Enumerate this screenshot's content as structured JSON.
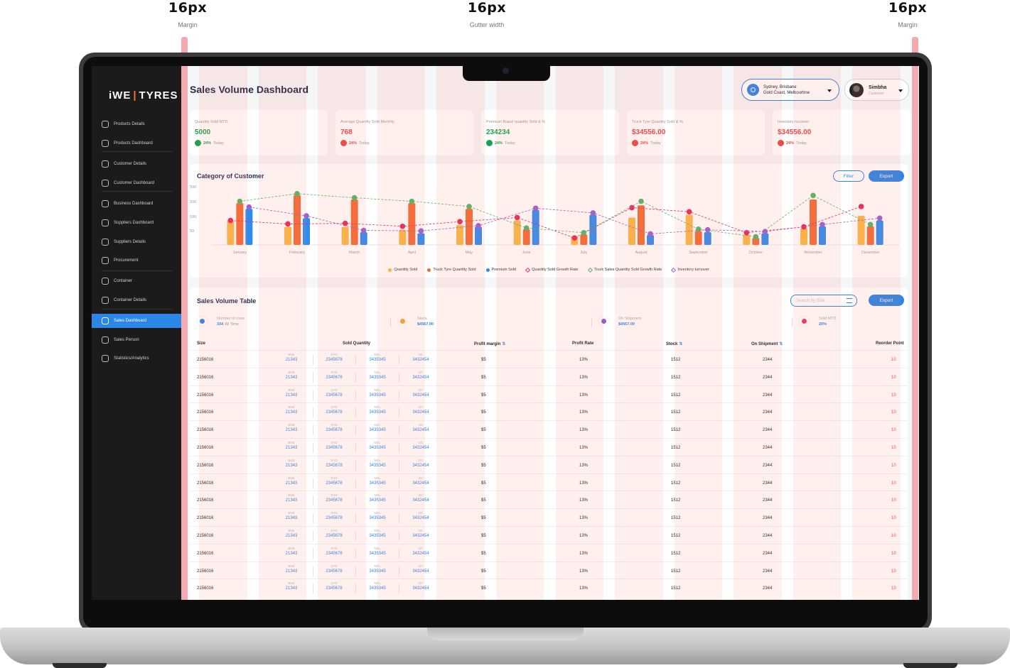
{
  "annotations": {
    "left": {
      "value": "16px",
      "label": "Margin"
    },
    "center": {
      "value": "16px",
      "label": "Gutter width"
    },
    "right": {
      "value": "16px",
      "label": "Margin"
    }
  },
  "logo": {
    "left": "iWE",
    "right": "TYRES"
  },
  "sidebar": {
    "items": [
      {
        "label": "Products Details",
        "icon": "cube-icon"
      },
      {
        "label": "Products Dashboard",
        "icon": "box-icon"
      },
      {
        "label": "Customer Details",
        "icon": "user-icon"
      },
      {
        "label": "Customer Dashboard",
        "icon": "user-badge-icon"
      },
      {
        "label": "Business Dashboard",
        "icon": "briefcase-icon"
      },
      {
        "label": "Suppliers Dashboard",
        "icon": "network-icon"
      },
      {
        "label": "Suppliers Details",
        "icon": "truck-icon"
      },
      {
        "label": "Procurement",
        "icon": "cart-icon"
      },
      {
        "label": "Container",
        "icon": "container-icon"
      },
      {
        "label": "Container Details",
        "icon": "container-detail-icon"
      },
      {
        "label": "Sales Dashboard",
        "icon": "chart-icon"
      },
      {
        "label": "Sales Person",
        "icon": "person-chart-icon"
      },
      {
        "label": "Statistics/Analytics",
        "icon": "analytics-icon"
      }
    ],
    "active": "Sales Dashboard"
  },
  "header": {
    "title": "Sales Volume Dashboard",
    "location_line1": "Sydney, Brisbane",
    "location_line2": "Gold Coast, Melbourbne",
    "user_name": "Simbha",
    "user_role": "Customer"
  },
  "kpis": [
    {
      "label": "Quantity Sold MTD",
      "value": "5000",
      "change": "24%",
      "period": "Today",
      "trend": "up",
      "color": "#1aa34a"
    },
    {
      "label": "Average Quantity Sold Monthly",
      "value": "768",
      "change": "24%",
      "period": "Today",
      "trend": "down",
      "color": "#ea4646"
    },
    {
      "label": "Premium Brand quantity Sold & %",
      "value": "234234",
      "change": "24%",
      "period": "Today",
      "trend": "up",
      "color": "#1aa34a"
    },
    {
      "label": "Truck Tyre Quantity Sold & %",
      "value": "$34556.00",
      "change": "24%",
      "period": "Today",
      "trend": "down",
      "color": "#ea4646"
    },
    {
      "label": "Inventory turnover",
      "value": "$34556.00",
      "change": "24%",
      "period": "Today",
      "trend": "down",
      "color": "#ea4646"
    }
  ],
  "category_card": {
    "title": "Category of Customer",
    "filter_label": "Filter",
    "export_label": "Export"
  },
  "chart_data": {
    "type": "bar",
    "title": "Category of Customer",
    "categories": [
      "January",
      "February",
      "March",
      "April",
      "May",
      "June",
      "July",
      "August",
      "September",
      "October",
      "November",
      "December"
    ],
    "yticks": [
      500,
      200,
      100,
      50
    ],
    "series": [
      {
        "name": "Quantity Sold",
        "type": "bar",
        "color": "#f9b94a",
        "values": [
          42,
          31,
          31,
          26,
          34,
          42,
          15,
          47,
          52,
          18,
          29,
          50
        ]
      },
      {
        "name": "Truck Tyre Quantity Sold",
        "type": "bar",
        "color": "#f26b37",
        "values": [
          72,
          86,
          78,
          72,
          62,
          27,
          18,
          68,
          24,
          12,
          78,
          32
        ]
      },
      {
        "name": "Premium Sold",
        "type": "bar",
        "color": "#2e8cf0",
        "values": [
          62,
          46,
          22,
          20,
          31,
          60,
          52,
          17,
          22,
          20,
          32,
          42
        ]
      },
      {
        "name": "Quantity Sold Growth Rate",
        "type": "line",
        "color": "#e8265e",
        "values": [
          42,
          36,
          37,
          32,
          40,
          47,
          12,
          64,
          57,
          21,
          31,
          66
        ]
      },
      {
        "name": "Truck Sales Quantity Sold Growth Rate",
        "type": "line",
        "color": "#4cba67",
        "values": [
          75,
          88,
          81,
          75,
          66,
          29,
          21,
          75,
          27,
          14,
          85,
          35
        ]
      },
      {
        "name": "Inventory turnover",
        "type": "line",
        "color": "#9b5fd0",
        "values": [
          65,
          50,
          25,
          24,
          33,
          63,
          55,
          19,
          26,
          23,
          35,
          46
        ]
      }
    ]
  },
  "table_card": {
    "title": "Sales Volume Table",
    "search_placeholder": "Search by Size",
    "export_label": "Export",
    "stats": [
      {
        "label": "Number of rows",
        "value": "334",
        "suffix": "All Time",
        "color": "#2b86e8",
        "icon": "rows-icon"
      },
      {
        "label": "Stock",
        "value": "$4567.00",
        "suffix": "",
        "color": "#f2a33b",
        "icon": "trend-icon"
      },
      {
        "label": "On Shipment",
        "value": "$4567.00",
        "suffix": "",
        "color": "#8e5ad6",
        "icon": "shipment-icon"
      },
      {
        "label": "Sold MTD",
        "value": "20%",
        "suffix": "",
        "color": "#e23a5e",
        "icon": "sold-icon"
      }
    ],
    "columns": [
      "Size",
      "Sold Quantity",
      "Profit margin",
      "Profit Rate",
      "Stock",
      "On Shipment",
      "Reorder Point"
    ],
    "sub_labels": [
      "BNE",
      "SYD",
      "MEL",
      "GC"
    ],
    "rows": [
      {
        "size": "2156016",
        "bne": "21343",
        "syd": "2345678",
        "mel": "3435345",
        "gc": "3432454",
        "margin": "$5",
        "rate": "13%",
        "stock": "1512",
        "shipment": "2344",
        "reorder": "10"
      },
      {
        "size": "2156016",
        "bne": "21343",
        "syd": "2345678",
        "mel": "3435345",
        "gc": "3432454",
        "margin": "$5",
        "rate": "13%",
        "stock": "1512",
        "shipment": "2344",
        "reorder": "10"
      },
      {
        "size": "2156016",
        "bne": "21343",
        "syd": "2345678",
        "mel": "3435345",
        "gc": "3432454",
        "margin": "$5",
        "rate": "13%",
        "stock": "1512",
        "shipment": "2344",
        "reorder": "10"
      },
      {
        "size": "2156016",
        "bne": "21343",
        "syd": "2345678",
        "mel": "3435345",
        "gc": "3432454",
        "margin": "$5",
        "rate": "13%",
        "stock": "1512",
        "shipment": "2344",
        "reorder": "10"
      },
      {
        "size": "2156016",
        "bne": "21343",
        "syd": "2345678",
        "mel": "3435345",
        "gc": "3432454",
        "margin": "$5",
        "rate": "13%",
        "stock": "1512",
        "shipment": "2344",
        "reorder": "10"
      },
      {
        "size": "2156016",
        "bne": "21343",
        "syd": "2345678",
        "mel": "3435345",
        "gc": "3432454",
        "margin": "$5",
        "rate": "13%",
        "stock": "1512",
        "shipment": "2344",
        "reorder": "10"
      },
      {
        "size": "2156016",
        "bne": "21343",
        "syd": "2345678",
        "mel": "3435345",
        "gc": "3432454",
        "margin": "$5",
        "rate": "13%",
        "stock": "1512",
        "shipment": "2344",
        "reorder": "10"
      },
      {
        "size": "2156016",
        "bne": "21343",
        "syd": "2345678",
        "mel": "3435345",
        "gc": "3432454",
        "margin": "$5",
        "rate": "13%",
        "stock": "1512",
        "shipment": "2344",
        "reorder": "10"
      },
      {
        "size": "2156016",
        "bne": "21343",
        "syd": "2345678",
        "mel": "3435345",
        "gc": "3432454",
        "margin": "$5",
        "rate": "13%",
        "stock": "1512",
        "shipment": "2344",
        "reorder": "10"
      },
      {
        "size": "2156016",
        "bne": "21343",
        "syd": "2345678",
        "mel": "3435345",
        "gc": "3432454",
        "margin": "$5",
        "rate": "13%",
        "stock": "1512",
        "shipment": "2344",
        "reorder": "10"
      },
      {
        "size": "2156016",
        "bne": "21343",
        "syd": "2345678",
        "mel": "3435345",
        "gc": "3432454",
        "margin": "$5",
        "rate": "13%",
        "stock": "1512",
        "shipment": "2344",
        "reorder": "10"
      },
      {
        "size": "2156016",
        "bne": "21343",
        "syd": "2345678",
        "mel": "3435345",
        "gc": "3432454",
        "margin": "$5",
        "rate": "13%",
        "stock": "1512",
        "shipment": "2344",
        "reorder": "10"
      },
      {
        "size": "2156016",
        "bne": "21343",
        "syd": "2345678",
        "mel": "3435345",
        "gc": "3432454",
        "margin": "$5",
        "rate": "13%",
        "stock": "1512",
        "shipment": "2344",
        "reorder": "10"
      },
      {
        "size": "2156016",
        "bne": "21343",
        "syd": "2345678",
        "mel": "3435345",
        "gc": "3432454",
        "margin": "$5",
        "rate": "13%",
        "stock": "1512",
        "shipment": "2344",
        "reorder": "10"
      }
    ]
  }
}
